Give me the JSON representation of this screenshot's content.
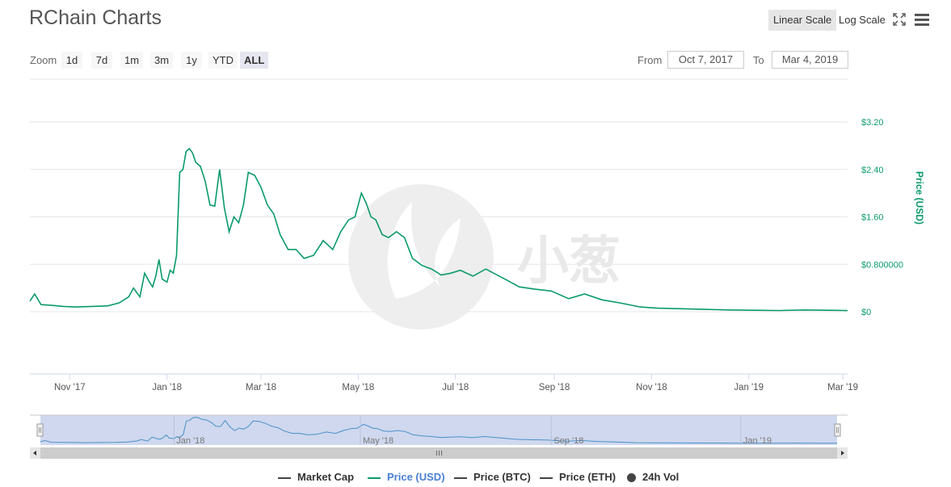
{
  "title": "RChain Charts",
  "scale": {
    "linear_label": "Linear Scale",
    "log_label": "Log Scale"
  },
  "icons": {
    "fullscreen": "fullscreen-icon",
    "menu": "hamburger-menu-icon"
  },
  "zoom": {
    "label": "Zoom",
    "buttons": [
      "1d",
      "7d",
      "1m",
      "3m",
      "1y",
      "YTD",
      "ALL"
    ],
    "active": "ALL"
  },
  "range": {
    "from_label": "From",
    "from_value": "Oct 7, 2017",
    "to_label": "To",
    "to_value": "Mar 4, 2019"
  },
  "colors": {
    "price": "#0a9a6b",
    "navigator_fill": "#cfd8ee",
    "navigator_line": "#4a90c8",
    "grid": "#e6e6e6"
  },
  "chart_data": {
    "type": "line",
    "title": "",
    "xlabel": "",
    "ylabel": "Price (USD)",
    "x_range": [
      "2017-10-07",
      "2019-03-04"
    ],
    "ylim": [
      0,
      3.2
    ],
    "y_ticks": [
      0,
      0.8,
      1.6,
      2.4,
      3.2
    ],
    "y_tick_labels": [
      "$0",
      "$0.800000",
      "$1.60",
      "$2.40",
      "$3.20"
    ],
    "x_ticks": [
      "2017-11-01",
      "2018-01-01",
      "2018-03-01",
      "2018-05-01",
      "2018-07-01",
      "2018-09-01",
      "2018-11-01",
      "2019-01-01",
      "2019-03-01"
    ],
    "x_tick_labels": [
      "Nov '17",
      "Jan '18",
      "Mar '18",
      "May '18",
      "Jul '18",
      "Sep '18",
      "Nov '18",
      "Jan '19",
      "Mar '19"
    ],
    "navigator_ticks": [
      "2018-01-01",
      "2018-05-01",
      "2018-09-01",
      "2019-01-01"
    ],
    "navigator_tick_labels": [
      "Jan '18",
      "May '18",
      "Sep '18",
      "Jan '19"
    ],
    "grid": true,
    "legend_position": "bottom",
    "series": [
      {
        "name": "Price (USD)",
        "x": [
          "2017-10-07",
          "2017-10-10",
          "2017-10-14",
          "2017-10-20",
          "2017-10-28",
          "2017-11-05",
          "2017-11-15",
          "2017-11-25",
          "2017-12-02",
          "2017-12-08",
          "2017-12-11",
          "2017-12-15",
          "2017-12-18",
          "2017-12-21",
          "2017-12-23",
          "2017-12-25",
          "2017-12-27",
          "2017-12-29",
          "2018-01-01",
          "2018-01-03",
          "2018-01-05",
          "2018-01-07",
          "2018-01-09",
          "2018-01-11",
          "2018-01-13",
          "2018-01-15",
          "2018-01-17",
          "2018-01-19",
          "2018-01-22",
          "2018-01-25",
          "2018-01-28",
          "2018-01-31",
          "2018-02-03",
          "2018-02-06",
          "2018-02-09",
          "2018-02-12",
          "2018-02-15",
          "2018-02-18",
          "2018-02-21",
          "2018-02-25",
          "2018-03-01",
          "2018-03-05",
          "2018-03-09",
          "2018-03-13",
          "2018-03-18",
          "2018-03-23",
          "2018-03-28",
          "2018-04-03",
          "2018-04-09",
          "2018-04-15",
          "2018-04-20",
          "2018-04-25",
          "2018-04-29",
          "2018-05-03",
          "2018-05-06",
          "2018-05-09",
          "2018-05-12",
          "2018-05-16",
          "2018-05-20",
          "2018-05-25",
          "2018-05-30",
          "2018-06-04",
          "2018-06-10",
          "2018-06-16",
          "2018-06-22",
          "2018-06-28",
          "2018-07-04",
          "2018-07-12",
          "2018-07-20",
          "2018-08-01",
          "2018-08-10",
          "2018-08-20",
          "2018-08-30",
          "2018-09-10",
          "2018-09-20",
          "2018-10-01",
          "2018-10-12",
          "2018-10-25",
          "2018-11-05",
          "2018-11-20",
          "2018-12-05",
          "2018-12-20",
          "2019-01-05",
          "2019-01-20",
          "2019-02-05",
          "2019-02-20",
          "2019-03-04"
        ],
        "y": [
          0.18,
          0.3,
          0.12,
          0.11,
          0.09,
          0.08,
          0.09,
          0.1,
          0.15,
          0.25,
          0.4,
          0.25,
          0.65,
          0.5,
          0.42,
          0.6,
          0.88,
          0.55,
          0.5,
          0.7,
          0.65,
          0.95,
          2.35,
          2.4,
          2.7,
          2.75,
          2.68,
          2.52,
          2.45,
          2.2,
          1.8,
          1.78,
          2.4,
          1.75,
          1.35,
          1.6,
          1.5,
          1.8,
          2.35,
          2.3,
          2.1,
          1.8,
          1.65,
          1.3,
          1.05,
          1.05,
          0.9,
          0.95,
          1.2,
          1.05,
          1.35,
          1.55,
          1.6,
          2.0,
          1.83,
          1.6,
          1.55,
          1.3,
          1.25,
          1.35,
          1.25,
          0.9,
          0.78,
          0.72,
          0.62,
          0.65,
          0.7,
          0.6,
          0.72,
          0.55,
          0.42,
          0.38,
          0.35,
          0.22,
          0.3,
          0.2,
          0.15,
          0.08,
          0.06,
          0.05,
          0.04,
          0.03,
          0.025,
          0.02,
          0.03,
          0.025,
          0.02
        ]
      },
      {
        "name": "Market Cap",
        "values": []
      },
      {
        "name": "Price (BTC)",
        "values": []
      },
      {
        "name": "Price (ETH)",
        "values": []
      },
      {
        "name": "24h Vol",
        "values": []
      }
    ]
  },
  "legend": [
    "Market Cap",
    "Price (USD)",
    "Price (BTC)",
    "Price (ETH)",
    "24h Vol"
  ]
}
